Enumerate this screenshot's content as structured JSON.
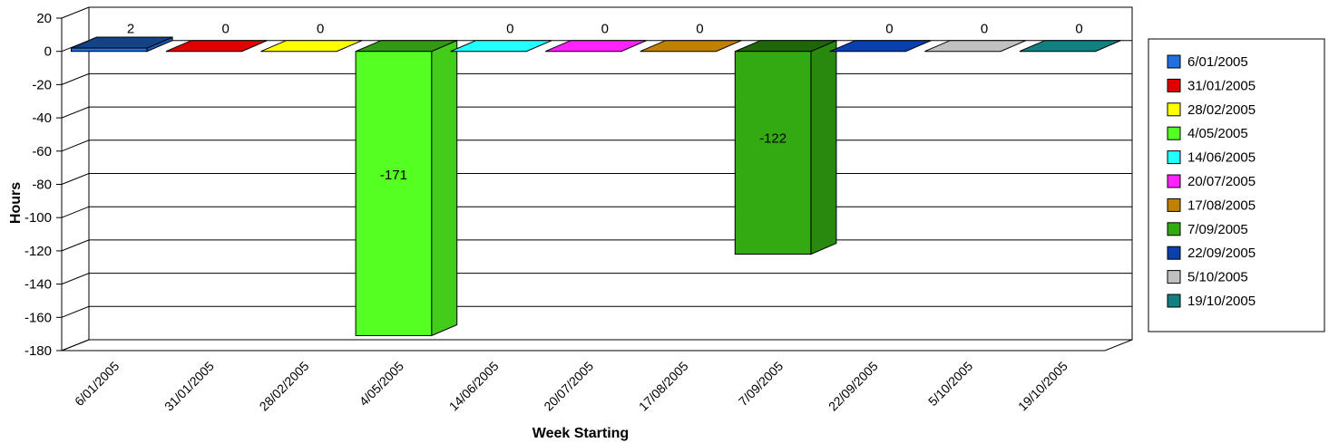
{
  "chart_data": {
    "type": "bar",
    "title": "",
    "xlabel": "Week Starting",
    "ylabel": "Hours",
    "ylim": [
      -180,
      20
    ],
    "yticks": [
      20,
      0,
      -20,
      -40,
      -60,
      -80,
      -100,
      -120,
      -140,
      -160,
      -180
    ],
    "ytick_labels": [
      "20",
      "0",
      "-20",
      "-40",
      "-60",
      "-80",
      "-100",
      "-120",
      "-140",
      "-160",
      "-180"
    ],
    "grid": true,
    "legend_position": "right",
    "categories": [
      "6/01/2005",
      "31/01/2005",
      "28/02/2005",
      "4/05/2005",
      "14/06/2005",
      "20/07/2005",
      "17/08/2005",
      "7/09/2005",
      "22/09/2005",
      "5/10/2005",
      "19/10/2005"
    ],
    "values": [
      2,
      0,
      0,
      -171,
      0,
      0,
      0,
      -122,
      0,
      0,
      0
    ],
    "data_labels": [
      "2",
      "0",
      "0",
      "-171",
      "0",
      "0",
      "0",
      "-122",
      "0",
      "0",
      "0"
    ],
    "colors": [
      "#1F6FE0",
      "#E00000",
      "#FFFF00",
      "#55FF22",
      "#22FFFF",
      "#FF22FF",
      "#C08000",
      "#33AA11",
      "#0A3FB0",
      "#C0C0C0",
      "#108080"
    ]
  }
}
